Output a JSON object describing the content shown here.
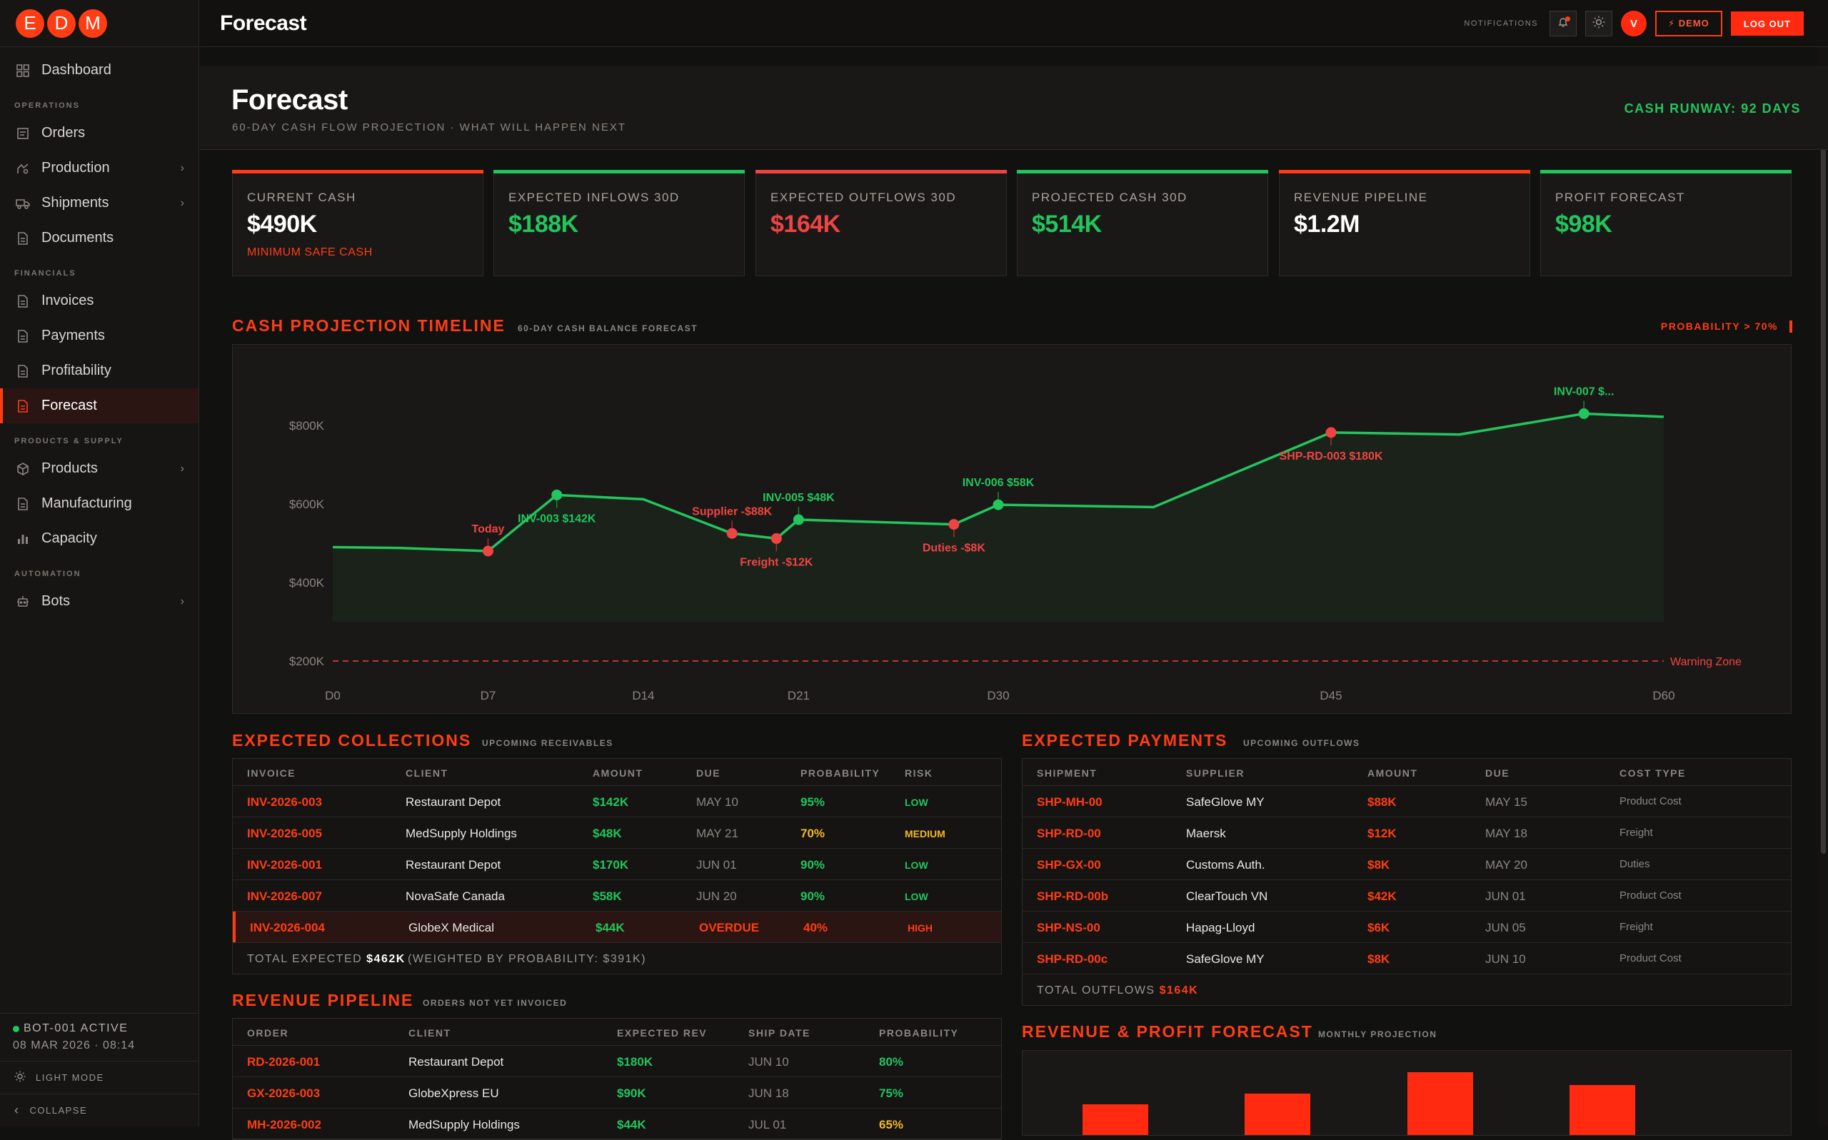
{
  "brand": {
    "letters": [
      "E",
      "D",
      "M"
    ]
  },
  "sidebar": {
    "dashboard": "Dashboard",
    "sections": {
      "operations": "OPERATIONS",
      "financials": "FINANCIALS",
      "products_supply": "PRODUCTS & SUPPLY",
      "automation": "AUTOMATION"
    },
    "items": {
      "orders": "Orders",
      "production": "Production",
      "shipments": "Shipments",
      "documents": "Documents",
      "invoices": "Invoices",
      "payments": "Payments",
      "profitability": "Profitability",
      "forecast": "Forecast",
      "products": "Products",
      "manufacturing": "Manufacturing",
      "capacity": "Capacity",
      "bots": "Bots"
    },
    "footer": {
      "bot_status": "BOT-001 ACTIVE",
      "timestamp": "08 MAR 2026 · 08:14",
      "light_mode": "LIGHT MODE",
      "collapse": "COLLAPSE"
    }
  },
  "topbar": {
    "title": "Forecast",
    "notifications_label": "NOTIFICATIONS",
    "avatar_initial": "V",
    "demo_label": "⚡ DEMO",
    "logout_label": "LOG OUT"
  },
  "header": {
    "title": "Forecast",
    "subtitle": "60-DAY CASH FLOW PROJECTION · WHAT WILL HAPPEN NEXT",
    "runway": "CASH RUNWAY: 92 DAYS"
  },
  "kpis": [
    {
      "label": "CURRENT CASH",
      "value": "$490K",
      "note": "MINIMUM SAFE CASH",
      "accent": "#ff3d14",
      "value_color": "#ffffff"
    },
    {
      "label": "EXPECTED INFLOWS 30D",
      "value": "$188K",
      "note": "",
      "accent": "#22c55e",
      "value_color": "#22c55e"
    },
    {
      "label": "EXPECTED OUTFLOWS 30D",
      "value": "$164K",
      "note": "",
      "accent": "#ef4444",
      "value_color": "#ef4444"
    },
    {
      "label": "PROJECTED CASH 30D",
      "value": "$514K",
      "note": "",
      "accent": "#22c55e",
      "value_color": "#22c55e"
    },
    {
      "label": "REVENUE PIPELINE",
      "value": "$1.2M",
      "note": "",
      "accent": "#ff3d14",
      "value_color": "#ffffff"
    },
    {
      "label": "PROFIT FORECAST",
      "value": "$98K",
      "note": "",
      "accent": "#22c55e",
      "value_color": "#22c55e"
    }
  ],
  "timeline": {
    "title": "CASH PROJECTION TIMELINE",
    "subtitle": "60-DAY CASH BALANCE FORECAST",
    "probability_label": "PROBABILITY > 70%"
  },
  "chart_data": {
    "type": "line",
    "title": "CASH PROJECTION TIMELINE",
    "x_ticks": [
      "D0",
      "D7",
      "D14",
      "D21",
      "D30",
      "D45",
      "D60"
    ],
    "x_tick_values": [
      0,
      7,
      14,
      21,
      30,
      45,
      60
    ],
    "y_ticks": [
      "$200K",
      "$400K",
      "$600K",
      "$800K"
    ],
    "y_tick_values": [
      200,
      400,
      600,
      800
    ],
    "ylim": [
      150,
      870
    ],
    "xlim": [
      0,
      60
    ],
    "warning_line": {
      "value": 200,
      "label": "Warning Zone"
    },
    "series": [
      {
        "values": [
          {
            "x": 0,
            "y": 490
          },
          {
            "x": 3,
            "y": 488
          },
          {
            "x": 7,
            "y": 480
          },
          {
            "x": 10.1,
            "y": 623
          },
          {
            "x": 14,
            "y": 612
          },
          {
            "x": 18,
            "y": 525
          },
          {
            "x": 20,
            "y": 512
          },
          {
            "x": 21,
            "y": 560
          },
          {
            "x": 28,
            "y": 548
          },
          {
            "x": 30,
            "y": 598
          },
          {
            "x": 37,
            "y": 592
          },
          {
            "x": 45,
            "y": 782
          },
          {
            "x": 50.8,
            "y": 777
          },
          {
            "x": 56.4,
            "y": 830
          },
          {
            "x": 60,
            "y": 822
          }
        ]
      }
    ],
    "events": [
      {
        "x": 7,
        "y": 480,
        "label": "Today",
        "kind": "outflow",
        "label_pos": "above"
      },
      {
        "x": 10.1,
        "y": 623,
        "label": "INV-003 $142K",
        "kind": "inflow",
        "label_pos": "below"
      },
      {
        "x": 18,
        "y": 525,
        "label": "Supplier -$88K",
        "kind": "outflow",
        "label_pos": "above"
      },
      {
        "x": 20,
        "y": 512,
        "label": "Freight -$12K",
        "kind": "outflow",
        "label_pos": "below"
      },
      {
        "x": 21,
        "y": 560,
        "label": "INV-005 $48K",
        "kind": "inflow",
        "label_pos": "above"
      },
      {
        "x": 28,
        "y": 548,
        "label": "Duties -$8K",
        "kind": "outflow",
        "label_pos": "below"
      },
      {
        "x": 30,
        "y": 598,
        "label": "INV-006 $58K",
        "kind": "inflow",
        "label_pos": "above"
      },
      {
        "x": 45,
        "y": 782,
        "label": "SHP-RD-003 $180K",
        "kind": "outflow",
        "label_pos": "below"
      },
      {
        "x": 56.4,
        "y": 830,
        "label": "INV-007 $...",
        "kind": "inflow",
        "label_pos": "above"
      }
    ],
    "colors": {
      "line": "#22c55e",
      "outflow": "#ef4444",
      "warning": "#ef4444"
    }
  },
  "collections": {
    "title": "EXPECTED COLLECTIONS",
    "subtitle": "UPCOMING RECEIVABLES",
    "columns": [
      "INVOICE",
      "CLIENT",
      "AMOUNT",
      "DUE",
      "PROBABILITY",
      "RISK"
    ],
    "rows": [
      {
        "invoice": "INV-2026-003",
        "client": "Restaurant Depot",
        "amount": "$142K",
        "due": "MAY 10",
        "probability": "95%",
        "risk": "LOW"
      },
      {
        "invoice": "INV-2026-005",
        "client": "MedSupply Holdings",
        "amount": "$48K",
        "due": "MAY 21",
        "probability": "70%",
        "risk": "MEDIUM"
      },
      {
        "invoice": "INV-2026-001",
        "client": "Restaurant Depot",
        "amount": "$170K",
        "due": "JUN 01",
        "probability": "90%",
        "risk": "LOW"
      },
      {
        "invoice": "INV-2026-007",
        "client": "NovaSafe Canada",
        "amount": "$58K",
        "due": "JUN 20",
        "probability": "90%",
        "risk": "LOW"
      },
      {
        "invoice": "INV-2026-004",
        "client": "GlobeX Medical",
        "amount": "$44K",
        "due": "OVERDUE",
        "probability": "40%",
        "risk": "HIGH"
      }
    ],
    "total_label": "TOTAL EXPECTED",
    "total_value": "$462K",
    "weighted": "(WEIGHTED BY PROBABILITY: $391K)"
  },
  "payments": {
    "title": "EXPECTED PAYMENTS",
    "subtitle": "UPCOMING OUTFLOWS",
    "columns": [
      "SHIPMENT",
      "SUPPLIER",
      "AMOUNT",
      "DUE",
      "COST TYPE"
    ],
    "rows": [
      {
        "shipment": "SHP-MH-00",
        "supplier": "SafeGlove MY",
        "amount": "$88K",
        "due": "MAY 15",
        "cost_type": "Product Cost"
      },
      {
        "shipment": "SHP-RD-00",
        "supplier": "Maersk",
        "amount": "$12K",
        "due": "MAY 18",
        "cost_type": "Freight"
      },
      {
        "shipment": "SHP-GX-00",
        "supplier": "Customs Auth.",
        "amount": "$8K",
        "due": "MAY 20",
        "cost_type": "Duties"
      },
      {
        "shipment": "SHP-RD-00b",
        "supplier": "ClearTouch VN",
        "amount": "$42K",
        "due": "JUN 01",
        "cost_type": "Product Cost"
      },
      {
        "shipment": "SHP-NS-00",
        "supplier": "Hapag-Lloyd",
        "amount": "$6K",
        "due": "JUN 05",
        "cost_type": "Freight"
      },
      {
        "shipment": "SHP-RD-00c",
        "supplier": "SafeGlove MY",
        "amount": "$8K",
        "due": "JUN 10",
        "cost_type": "Product Cost"
      }
    ],
    "total_label": "TOTAL OUTFLOWS",
    "total_value": "$164K"
  },
  "pipeline": {
    "title": "REVENUE PIPELINE",
    "subtitle": "ORDERS NOT YET INVOICED",
    "columns": [
      "ORDER",
      "CLIENT",
      "EXPECTED REV",
      "SHIP DATE",
      "PROBABILITY"
    ],
    "rows": [
      {
        "order": "RD-2026-001",
        "client": "Restaurant Depot",
        "rev": "$180K",
        "ship": "JUN 10",
        "probability": "80%"
      },
      {
        "order": "GX-2026-003",
        "client": "GlobeXpress EU",
        "rev": "$90K",
        "ship": "JUN 18",
        "probability": "75%"
      },
      {
        "order": "MH-2026-002",
        "client": "MedSupply Holdings",
        "rev": "$44K",
        "ship": "JUL 01",
        "probability": "65%"
      }
    ]
  },
  "rev_forecast": {
    "title": "REVENUE & PROFIT FORECAST",
    "subtitle": "MONTHLY PROJECTION",
    "bar_levels": [
      0.36,
      0.48,
      0.73,
      0.58
    ]
  }
}
